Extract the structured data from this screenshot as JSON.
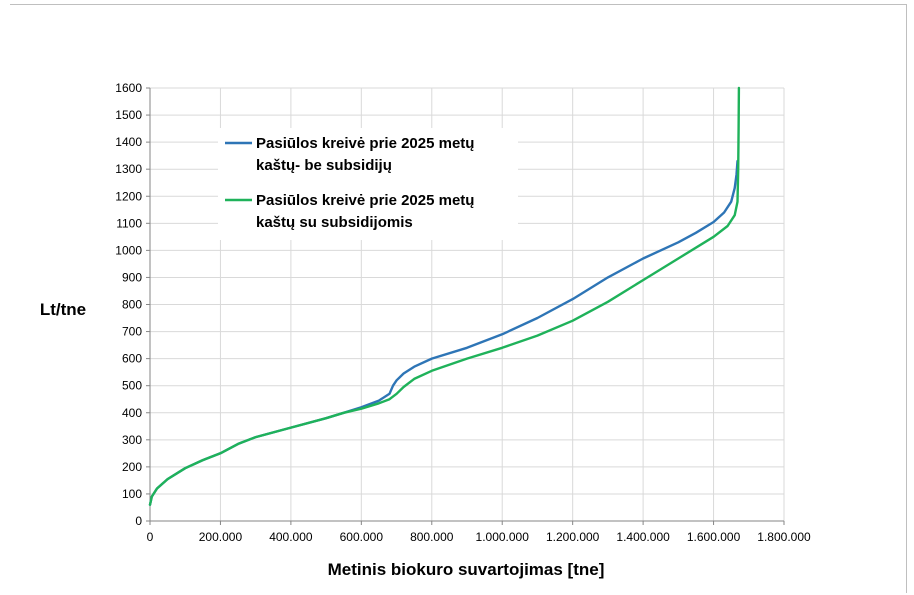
{
  "chart_data": {
    "type": "line",
    "title": "",
    "xlabel": "Metinis biokuro suvartojimas [tne]",
    "ylabel": "Lt/tne",
    "xlim": [
      0,
      1800000
    ],
    "ylim": [
      0,
      1600
    ],
    "x_ticks": [
      0,
      200000,
      400000,
      600000,
      800000,
      1000000,
      1200000,
      1400000,
      1600000,
      1800000
    ],
    "x_tick_labels": [
      "0",
      "200.000",
      "400.000",
      "600.000",
      "800.000",
      "1.000.000",
      "1.200.000",
      "1.400.000",
      "1.600.000",
      "1.800.000"
    ],
    "y_ticks": [
      0,
      100,
      200,
      300,
      400,
      500,
      600,
      700,
      800,
      900,
      1000,
      1100,
      1200,
      1300,
      1400,
      1500,
      1600
    ],
    "y_tick_labels": [
      "0",
      "100",
      "200",
      "300",
      "400",
      "500",
      "600",
      "700",
      "800",
      "900",
      "1000",
      "1100",
      "1200",
      "1300",
      "1400",
      "1500",
      "1600"
    ],
    "grid": true,
    "legend_position": "top-left",
    "series": [
      {
        "name": "Pasiūlos kreivė prie 2025 metų kaštų- be subsidijų",
        "name_lines": [
          "Pasiūlos kreivė prie 2025 metų",
          "kaštų- be subsidijų"
        ],
        "color": "#2e75b6",
        "x": [
          0,
          5000,
          20000,
          50000,
          100000,
          150000,
          200000,
          250000,
          300000,
          400000,
          500000,
          550000,
          600000,
          650000,
          680000,
          690000,
          700000,
          720000,
          750000,
          800000,
          900000,
          1000000,
          1100000,
          1200000,
          1300000,
          1400000,
          1500000,
          1550000,
          1600000,
          1630000,
          1650000,
          1660000,
          1665000,
          1668000
        ],
        "y": [
          60,
          90,
          120,
          155,
          195,
          225,
          250,
          285,
          310,
          345,
          380,
          400,
          420,
          445,
          470,
          500,
          520,
          545,
          570,
          600,
          640,
          690,
          750,
          820,
          900,
          970,
          1030,
          1065,
          1105,
          1140,
          1180,
          1230,
          1280,
          1330
        ]
      },
      {
        "name": "Pasiūlos kreivė prie 2025 metų kaštų su subsidijomis",
        "name_lines": [
          "Pasiūlos kreivė prie 2025 metų",
          "kaštų su subsidijomis"
        ],
        "color": "#1fb25a",
        "x": [
          0,
          5000,
          20000,
          50000,
          100000,
          150000,
          200000,
          250000,
          300000,
          400000,
          500000,
          550000,
          600000,
          650000,
          680000,
          700000,
          720000,
          750000,
          800000,
          900000,
          1000000,
          1100000,
          1200000,
          1300000,
          1400000,
          1500000,
          1600000,
          1640000,
          1660000,
          1668000,
          1670000,
          1671000,
          1672000
        ],
        "y": [
          60,
          90,
          120,
          155,
          195,
          225,
          250,
          285,
          310,
          345,
          380,
          400,
          415,
          435,
          450,
          470,
          495,
          525,
          555,
          600,
          640,
          685,
          740,
          810,
          890,
          970,
          1050,
          1090,
          1130,
          1180,
          1300,
          1450,
          1600
        ]
      }
    ]
  }
}
